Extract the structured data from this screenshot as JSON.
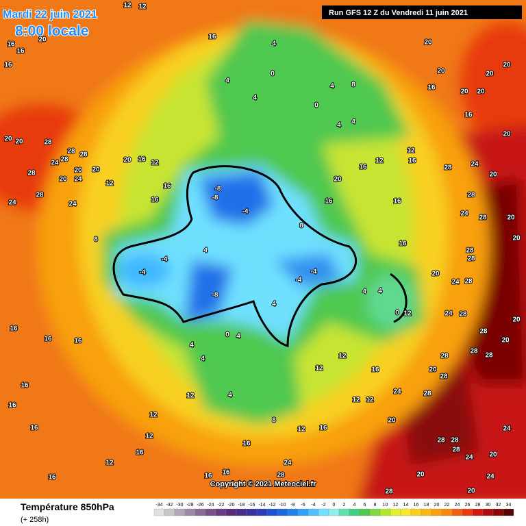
{
  "header": {
    "date": "Mardi 22 juin 2021",
    "time": "8:00 locale",
    "run": "Run GFS 12 Z du Vendredi 11 juin 2021"
  },
  "footer": {
    "title": "Température 850hPa",
    "lead": "(+ 258h)",
    "copyright": "Copyright © 2021 Meteociel.fr"
  },
  "legend": {
    "values": [
      -34,
      -32,
      -30,
      -28,
      -26,
      -24,
      -22,
      -20,
      -18,
      -16,
      -14,
      -12,
      -10,
      -8,
      -6,
      -4,
      -2,
      0,
      2,
      4,
      6,
      8,
      10,
      12,
      14,
      16,
      18,
      20,
      22,
      24,
      26,
      28,
      30,
      32,
      34
    ],
    "colors": [
      "#e0e0e0",
      "#c8c8c8",
      "#b0a8b8",
      "#9c8aa8",
      "#8a6a98",
      "#7a5088",
      "#6a3a80",
      "#5a2a7a",
      "#4a2a8a",
      "#3a30a0",
      "#2a3cb8",
      "#1e50d0",
      "#1868e0",
      "#2080f0",
      "#30a0f8",
      "#50c0ff",
      "#70e0ff",
      "#90f0f0",
      "#60e0b0",
      "#40d080",
      "#50c850",
      "#80d840",
      "#b0e830",
      "#e0f030",
      "#f8e830",
      "#f8d020",
      "#f8b818",
      "#f8a010",
      "#f88810",
      "#f06010",
      "#e83a10",
      "#d01818",
      "#b00c10",
      "#880808",
      "#580404"
    ]
  },
  "map_labels": [
    "12",
    "12",
    "16",
    "16",
    "20",
    "16",
    "16",
    "4",
    "0",
    "4",
    "4",
    "4",
    "8",
    "0",
    "4",
    "4",
    "20",
    "20",
    "20",
    "20",
    "20",
    "20",
    "16",
    "16",
    "20",
    "20",
    "20",
    "28",
    "28",
    "28",
    "24",
    "28",
    "20",
    "28",
    "20",
    "24",
    "20",
    "20",
    "16",
    "24",
    "28",
    "24",
    "12",
    "16",
    "12",
    "16",
    "20",
    "28",
    "24",
    "20",
    "28",
    "24",
    "28",
    "20",
    "20",
    "28",
    "28",
    "24",
    "28",
    "24",
    "28",
    "20",
    "28",
    "20",
    "28",
    "28",
    "28",
    "20",
    "28",
    "28",
    "24",
    "28",
    "28",
    "24",
    "28",
    "20",
    "20",
    "24",
    "24",
    "20",
    "-8",
    "-8",
    "-4",
    "-4",
    "-4",
    "-8",
    "-4",
    "-4",
    "0",
    "4",
    "4",
    "4",
    "0",
    "4",
    "4",
    "4",
    "4",
    "16",
    "16",
    "16",
    "16",
    "16",
    "16",
    "12",
    "12",
    "12",
    "16",
    "12",
    "16",
    "16",
    "16",
    "28",
    "24",
    "28",
    "20",
    "16",
    "12",
    "12",
    "8",
    "12",
    "16",
    "16",
    "12",
    "12",
    "4",
    "12",
    "8",
    "12",
    "16",
    "16",
    "8",
    "16",
    "16",
    "16",
    "12",
    "20"
  ]
}
